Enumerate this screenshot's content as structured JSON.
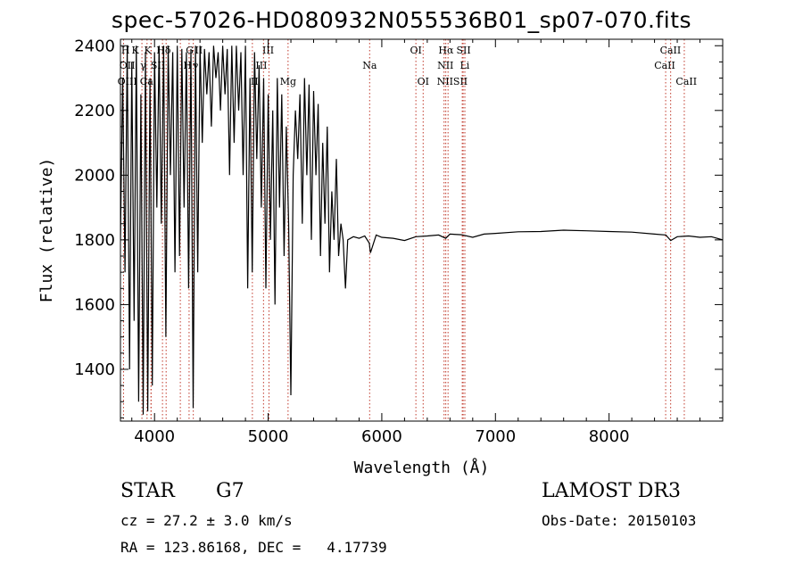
{
  "header": {
    "title": "spec-57026-HD080932N055536B01_sp07-070.fits"
  },
  "footer": {
    "class_label": "STAR",
    "subclass": "G7",
    "survey": "LAMOST DR3",
    "cz": "cz = 27.2 ± 3.0 km/s",
    "obs_date": "Obs-Date: 20150103",
    "radec": "RA = 123.86168, DEC =   4.17739"
  },
  "chart_data": {
    "type": "line",
    "xlabel": "Wavelength (Å)",
    "ylabel": "Flux (relative)",
    "xlim": [
      3700,
      9000
    ],
    "ylim": [
      1240,
      2420
    ],
    "x_ticks": [
      4000,
      5000,
      6000,
      7000,
      8000
    ],
    "y_ticks": [
      1400,
      1600,
      1800,
      2000,
      2200,
      2400
    ],
    "grid": false,
    "line_color": "#000000",
    "marker_color": "#c0392b",
    "spectrum": {
      "x": [
        3700,
        3720,
        3740,
        3760,
        3780,
        3800,
        3820,
        3840,
        3860,
        3880,
        3900,
        3920,
        3940,
        3960,
        3980,
        4000,
        4020,
        4040,
        4060,
        4080,
        4100,
        4120,
        4140,
        4160,
        4180,
        4200,
        4220,
        4240,
        4260,
        4280,
        4300,
        4320,
        4340,
        4360,
        4380,
        4400,
        4420,
        4440,
        4460,
        4480,
        4500,
        4520,
        4540,
        4560,
        4580,
        4600,
        4620,
        4640,
        4660,
        4680,
        4700,
        4720,
        4740,
        4760,
        4780,
        4800,
        4820,
        4840,
        4860,
        4880,
        4900,
        4920,
        4940,
        4960,
        4980,
        5000,
        5020,
        5040,
        5060,
        5080,
        5100,
        5120,
        5140,
        5160,
        5180,
        5200,
        5220,
        5240,
        5260,
        5280,
        5300,
        5320,
        5340,
        5360,
        5380,
        5400,
        5420,
        5440,
        5460,
        5480,
        5500,
        5520,
        5540,
        5560,
        5580,
        5600,
        5620,
        5640,
        5660,
        5680,
        5700,
        5750,
        5800,
        5850,
        5890,
        5900,
        5950,
        6000,
        6100,
        6200,
        6300,
        6400,
        6500,
        6563,
        6600,
        6700,
        6800,
        6900,
        7000,
        7200,
        7400,
        7600,
        7800,
        8000,
        8200,
        8400,
        8500,
        8542,
        8600,
        8700,
        8800,
        8900,
        9000
      ],
      "y": [
        1800,
        2300,
        1700,
        2400,
        1400,
        2350,
        1550,
        2400,
        1300,
        2250,
        1260,
        2380,
        1270,
        2300,
        1350,
        2380,
        1900,
        2400,
        1850,
        2400,
        1500,
        2400,
        2000,
        2380,
        1700,
        2400,
        1750,
        2390,
        1900,
        2380,
        1650,
        2390,
        1280,
        2400,
        1700,
        2400,
        2100,
        2390,
        2250,
        2380,
        2150,
        2400,
        2300,
        2380,
        2200,
        2400,
        2250,
        2390,
        2000,
        2400,
        2100,
        2400,
        2200,
        2380,
        2000,
        2400,
        1650,
        2300,
        1700,
        2380,
        2050,
        2340,
        1900,
        2300,
        1650,
        2250,
        1800,
        2200,
        1600,
        2300,
        1900,
        2250,
        1750,
        2150,
        1850,
        1320,
        2000,
        2200,
        2050,
        2250,
        1850,
        2300,
        2000,
        2280,
        1800,
        2260,
        2000,
        2220,
        1750,
        2100,
        1850,
        2150,
        1700,
        1950,
        1800,
        2050,
        1750,
        1850,
        1800,
        1650,
        1800,
        1810,
        1805,
        1812,
        1790,
        1760,
        1815,
        1808,
        1805,
        1798,
        1810,
        1812,
        1815,
        1805,
        1818,
        1816,
        1808,
        1818,
        1820,
        1825,
        1826,
        1830,
        1828,
        1826,
        1824,
        1818,
        1815,
        1798,
        1810,
        1812,
        1808,
        1810,
        1800
      ]
    },
    "line_markers": [
      {
        "name": "Ca K",
        "wavelength": 3934
      },
      {
        "name": "Ca H",
        "wavelength": 3969
      },
      {
        "name": "Hδ",
        "wavelength": 4102
      },
      {
        "name": "Ca I",
        "wavelength": 4227
      },
      {
        "name": "G",
        "wavelength": 4304
      },
      {
        "name": "Hγ",
        "wavelength": 4341
      },
      {
        "name": "Hβ",
        "wavelength": 4861
      },
      {
        "name": "OIII",
        "wavelength": 4959
      },
      {
        "name": "OIII",
        "wavelength": 5007
      },
      {
        "name": "Mg",
        "wavelength": 5175
      },
      {
        "name": "Na",
        "wavelength": 5893
      },
      {
        "name": "OI",
        "wavelength": 6300
      },
      {
        "name": "OI",
        "wavelength": 6364
      },
      {
        "name": "NII",
        "wavelength": 6548
      },
      {
        "name": "Hα",
        "wavelength": 6563
      },
      {
        "name": "NII",
        "wavelength": 6583
      },
      {
        "name": "Li",
        "wavelength": 6708
      },
      {
        "name": "SII",
        "wavelength": 6716
      },
      {
        "name": "SII",
        "wavelength": 6731
      },
      {
        "name": "CaII",
        "wavelength": 8498
      },
      {
        "name": "CaII",
        "wavelength": 8542
      },
      {
        "name": "CaII",
        "wavelength": 8662
      },
      {
        "name": "OII",
        "wavelength": 3727
      },
      {
        "name": "SII",
        "wavelength": 4070
      },
      {
        "name": "He",
        "wavelength": 3889
      },
      {
        "name": "Hε",
        "wavelength": 3970
      }
    ],
    "marker_labels": [
      {
        "text": "H",
        "wavelength": 3745,
        "row": 0
      },
      {
        "text": "K",
        "wavelength": 3830,
        "row": 0
      },
      {
        "text": "K",
        "wavelength": 3940,
        "row": 0
      },
      {
        "text": "Hδ",
        "wavelength": 4080,
        "row": 0
      },
      {
        "text": "G",
        "wavelength": 4310,
        "row": 0
      },
      {
        "text": "II",
        "wavelength": 4390,
        "row": 0
      },
      {
        "text": "III",
        "wavelength": 5000,
        "row": 0
      },
      {
        "text": "OI",
        "wavelength": 6300,
        "row": 0
      },
      {
        "text": "Hα",
        "wavelength": 6565,
        "row": 0
      },
      {
        "text": "SII",
        "wavelength": 6720,
        "row": 0
      },
      {
        "text": "CaII",
        "wavelength": 8540,
        "row": 0
      },
      {
        "text": "OII",
        "wavelength": 3760,
        "row": 1
      },
      {
        "text": "γ",
        "wavelength": 3900,
        "row": 1
      },
      {
        "text": "SII",
        "wavelength": 4030,
        "row": 1
      },
      {
        "text": "H",
        "wavelength": 4290,
        "row": 1
      },
      {
        "text": "γ",
        "wavelength": 4360,
        "row": 1
      },
      {
        "text": "III",
        "wavelength": 4940,
        "row": 1
      },
      {
        "text": "Na",
        "wavelength": 5893,
        "row": 1
      },
      {
        "text": "NII",
        "wavelength": 6560,
        "row": 1
      },
      {
        "text": "Li",
        "wavelength": 6730,
        "row": 1
      },
      {
        "text": "CaII",
        "wavelength": 8490,
        "row": 1
      },
      {
        "text": "OIII",
        "wavelength": 3760,
        "row": 2
      },
      {
        "text": "Ca",
        "wavelength": 3930,
        "row": 2
      },
      {
        "text": "I",
        "wavelength": 4320,
        "row": 2
      },
      {
        "text": "II",
        "wavelength": 4880,
        "row": 2
      },
      {
        "text": "Mg",
        "wavelength": 5175,
        "row": 2
      },
      {
        "text": "OI",
        "wavelength": 6364,
        "row": 2
      },
      {
        "text": "NIISII",
        "wavelength": 6620,
        "row": 2
      },
      {
        "text": "CaII",
        "wavelength": 8680,
        "row": 2
      }
    ]
  }
}
